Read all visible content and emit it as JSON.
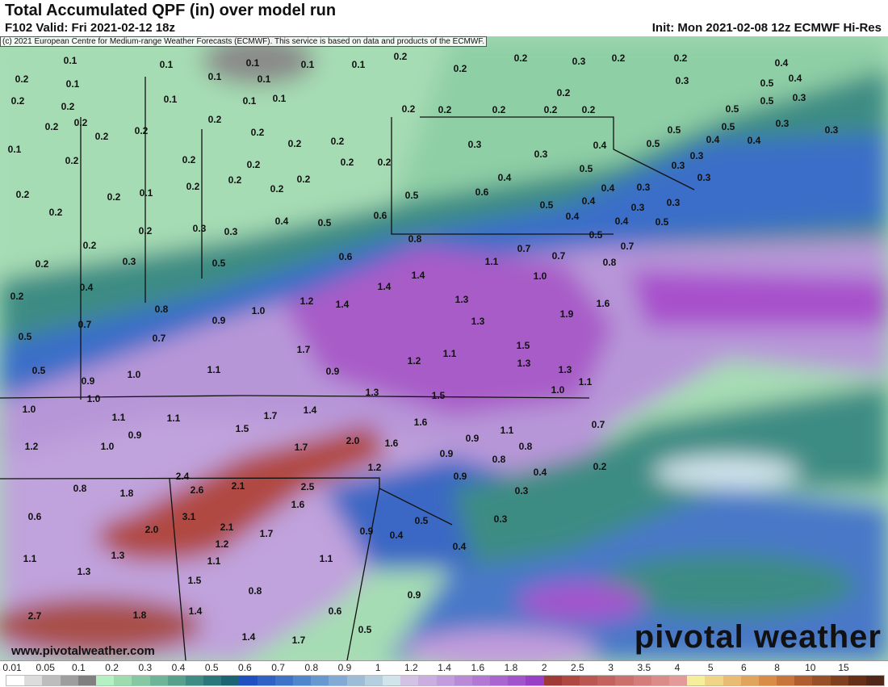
{
  "header": {
    "title": "Total Accumulated QPF (in) over model run",
    "valid": "F102 Valid: Fri 2021-02-12 18z",
    "init": "Init: Mon 2021-02-08 12z ECMWF Hi-Res"
  },
  "map": {
    "credit": "(c) 2021 European Centre for Medium-range Weather Forecasts (ECMWF). This service is based on data and products of the ECMWF.",
    "url": "www.pivotalweather.com",
    "logo": "pivotal weather",
    "labels": [
      "0.1",
      "0.1",
      "0.1",
      "0.1",
      "0.1",
      "0.2",
      "0.2",
      "0.2",
      "0.3",
      "0.2",
      "0.2",
      "0.4",
      "0.2",
      "0.1",
      "0.1",
      "0.1",
      "0.5",
      "0.4",
      "0.3",
      "0.2",
      "0.2",
      "0.1",
      "0.1",
      "0.1",
      "0.2",
      "0.5",
      "0.3",
      "0.2",
      "0.2",
      "0.2",
      "0.2",
      "0.2",
      "0.2",
      "0.2",
      "0.2",
      "0.2",
      "0.2",
      "0.2",
      "0.5",
      "0.5",
      "0.5",
      "0.3",
      "0.3",
      "0.1",
      "0.2",
      "0.2",
      "0.2",
      "0.2",
      "0.2",
      "0.2",
      "0.2",
      "0.3",
      "0.3",
      "0.4",
      "0.5",
      "0.4",
      "0.4",
      "0.3",
      "0.5",
      "0.2",
      "0.2",
      "0.2",
      "0.1",
      "0.2",
      "0.2",
      "0.2",
      "0.2",
      "0.4",
      "0.3",
      "0.3",
      "0.4",
      "0.3",
      "0.3",
      "0.6",
      "0.5",
      "0.5",
      "0.4",
      "0.2",
      "0.2",
      "0.3",
      "0.3",
      "0.4",
      "0.5",
      "0.6",
      "0.4",
      "0.3",
      "0.4",
      "0.5",
      "0.2",
      "0.3",
      "0.5",
      "0.6",
      "0.8",
      "0.7",
      "0.5",
      "0.7",
      "0.7",
      "1.1",
      "0.8",
      "0.4",
      "1.4",
      "1.0",
      "1.4",
      "0.2",
      "1.2",
      "1.4",
      "1.3",
      "1.6",
      "0.8",
      "1.0",
      "0.7",
      "0.9",
      "1.9",
      "1.3",
      "0.5",
      "0.7",
      "1.7",
      "1.5",
      "1.1",
      "1.2",
      "1.3",
      "0.5",
      "1.0",
      "1.1",
      "0.9",
      "1.3",
      "0.9",
      "1.1",
      "1.3",
      "1.5",
      "1.0",
      "1.0",
      "1.0",
      "1.1",
      "1.1",
      "1.7",
      "1.4",
      "1.6",
      "1.5",
      "0.7",
      "0.9",
      "1.1",
      "1.2",
      "1.0",
      "0.9",
      "1.7",
      "2.0",
      "1.6",
      "0.8",
      "0.9",
      "0.8",
      "1.2",
      "0.2",
      "0.4",
      "2.4",
      "0.9",
      "0.8",
      "1.8",
      "2.6",
      "2.1",
      "2.5",
      "0.3",
      "0.6",
      "3.1",
      "1.6",
      "0.5",
      "0.3",
      "2.0",
      "2.1",
      "1.7",
      "0.9",
      "0.4",
      "1.2",
      "1.1",
      "1.3",
      "1.1",
      "1.1",
      "0.4",
      "1.3",
      "1.5",
      "0.8",
      "0.9",
      "1.4",
      "0.6",
      "2.7",
      "1.8",
      "0.5",
      "1.4",
      "1.7"
    ]
  },
  "colorbar": {
    "ticks": [
      "0.01",
      "0.05",
      "0.1",
      "0.2",
      "0.3",
      "0.4",
      "0.5",
      "0.6",
      "0.7",
      "0.8",
      "0.9",
      "1",
      "1.2",
      "1.4",
      "1.6",
      "1.8",
      "2",
      "2.5",
      "3",
      "3.5",
      "4",
      "5",
      "6",
      "8",
      "10",
      "15"
    ],
    "colors": [
      "#ffffff",
      "#dcdcdc",
      "#bdbdbd",
      "#9e9e9e",
      "#808080",
      "#b4f0c2",
      "#9edcb0",
      "#86c8a2",
      "#6eb496",
      "#56a08c",
      "#3e8c84",
      "#2a787c",
      "#1a6474",
      "#1e50c0",
      "#2e62c4",
      "#3e74c8",
      "#5086cc",
      "#6898d0",
      "#82aad4",
      "#9cbcd8",
      "#b4d0e0",
      "#d0e4ec",
      "#d2c2e4",
      "#caaee0",
      "#c29cdc",
      "#ba8ad8",
      "#b278d4",
      "#aa66d0",
      "#a254cc",
      "#9a40c6",
      "#a03a36",
      "#b04842",
      "#bc5650",
      "#c4625e",
      "#cc706c",
      "#d47e7a",
      "#dc8c88",
      "#e49a98",
      "#f6ee9a",
      "#f0d488",
      "#e8bc72",
      "#e0a45c",
      "#d88c46",
      "#c8743a",
      "#b05e30",
      "#985028",
      "#804020",
      "#663018",
      "#50281a"
    ]
  }
}
